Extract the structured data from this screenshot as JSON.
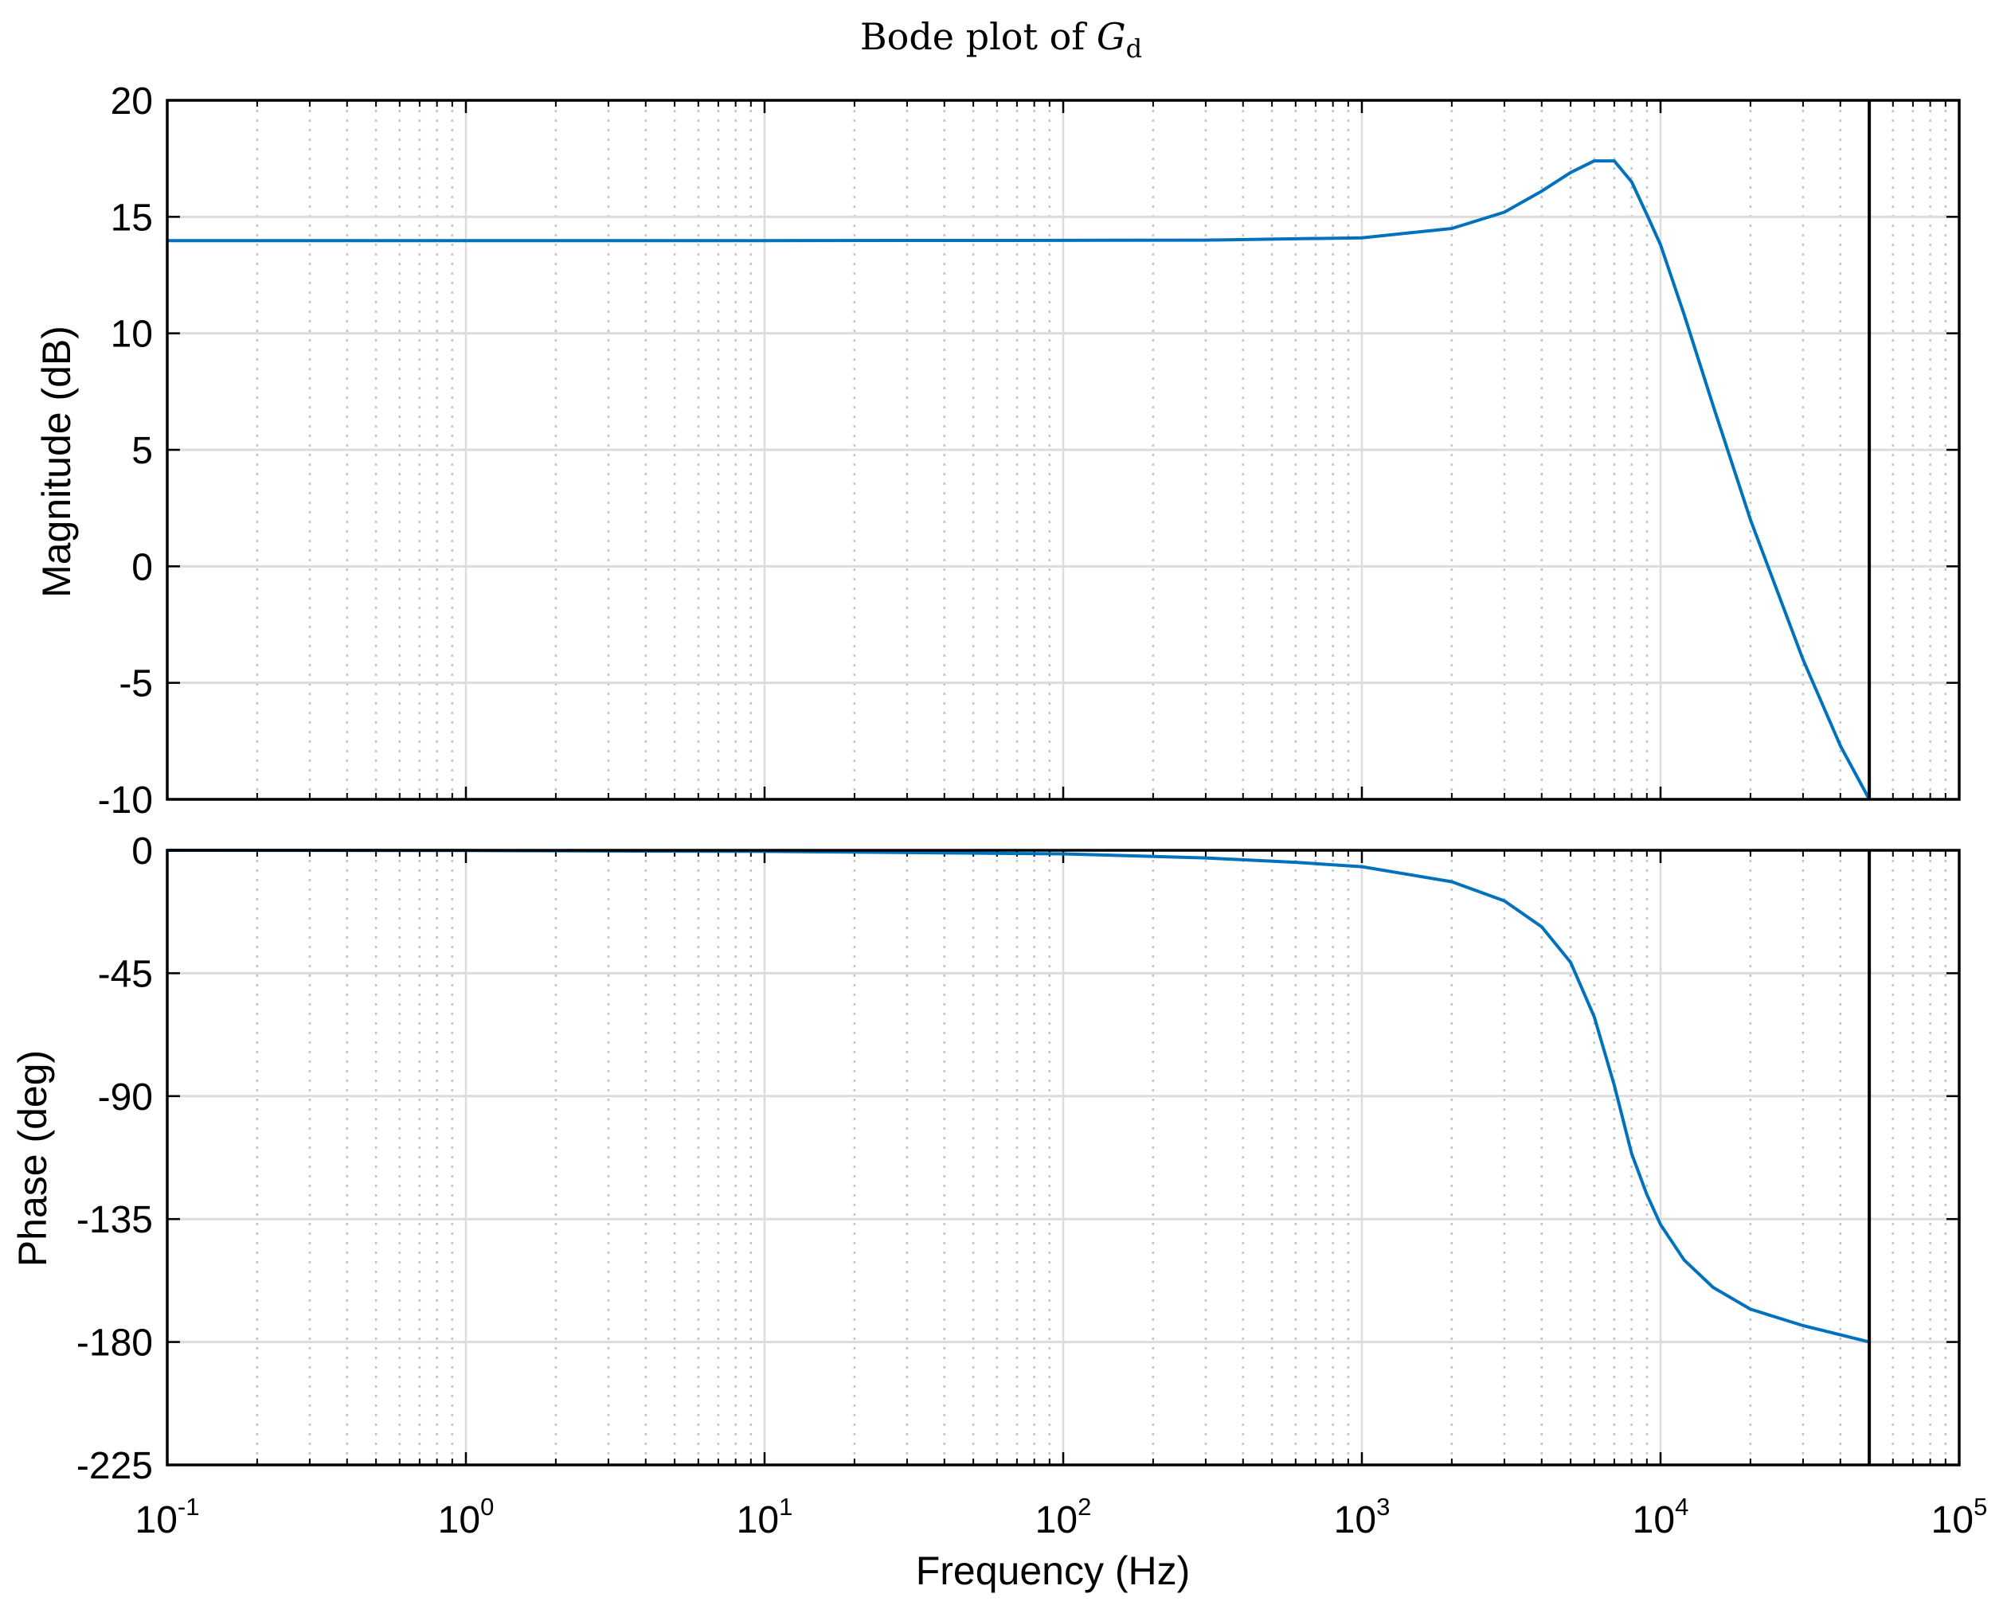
{
  "chart_data": {
    "type": "line",
    "title": "Bode plot of ",
    "title_symbol": "G",
    "title_subscript": "d",
    "x_axis": {
      "label": "Frequency  (Hz)",
      "scale": "log",
      "range": [
        0.1,
        100000
      ],
      "ticks": [
        0.1,
        1,
        10,
        100,
        1000,
        10000,
        100000
      ],
      "tick_bases": [
        "10",
        "10",
        "10",
        "10",
        "10",
        "10",
        "10"
      ],
      "tick_exponents": [
        "-1",
        "0",
        "1",
        "2",
        "3",
        "4",
        "5"
      ]
    },
    "marker_line": {
      "x": 50000,
      "color": "#000000"
    },
    "grid": true,
    "line_color": "#0072bd",
    "panels": [
      {
        "name": "magnitude",
        "ylabel": "Magnitude (dB)",
        "ylim": [
          -10,
          20
        ],
        "yticks": [
          20,
          15,
          10,
          5,
          0,
          -5,
          -10
        ],
        "ytick_labels": [
          "20",
          "15",
          "10",
          "5",
          "0",
          "-5",
          "-10"
        ],
        "series": [
          {
            "x": [
              0.1,
              1,
              10,
              100,
              300,
              1000,
              2000,
              3000,
              4000,
              5000,
              6000,
              7000,
              8000,
              9000,
              10000,
              12000,
              15000,
              20000,
              30000,
              40000,
              50000
            ],
            "values": [
              13.98,
              13.98,
              13.98,
              13.99,
              14.0,
              14.1,
              14.5,
              15.2,
              16.1,
              16.9,
              17.4,
              17.4,
              16.5,
              15.1,
              13.8,
              10.8,
              6.9,
              2.0,
              -4.0,
              -7.7,
              -10.0
            ]
          }
        ]
      },
      {
        "name": "phase",
        "ylabel": "Phase (deg)",
        "ylim": [
          -225,
          0
        ],
        "yticks": [
          0,
          -45,
          -90,
          -135,
          -180,
          -225
        ],
        "ytick_labels": [
          "0",
          "-45",
          "-90",
          "-135",
          "-180",
          "-225"
        ],
        "series": [
          {
            "x": [
              0.1,
              1,
              10,
              100,
              300,
              600,
              1000,
              2000,
              3000,
              4000,
              5000,
              6000,
              7000,
              8000,
              9000,
              10000,
              12000,
              15000,
              20000,
              30000,
              50000
            ],
            "values": [
              0,
              -0.1,
              -0.4,
              -1.3,
              -2.8,
              -4.4,
              -6.0,
              -11.5,
              -18.5,
              -28.0,
              -41.0,
              -61.0,
              -86.0,
              -111.0,
              -126.0,
              -137.0,
              -150.0,
              -160.0,
              -168.0,
              -174.0,
              -180.0
            ]
          }
        ]
      }
    ]
  }
}
